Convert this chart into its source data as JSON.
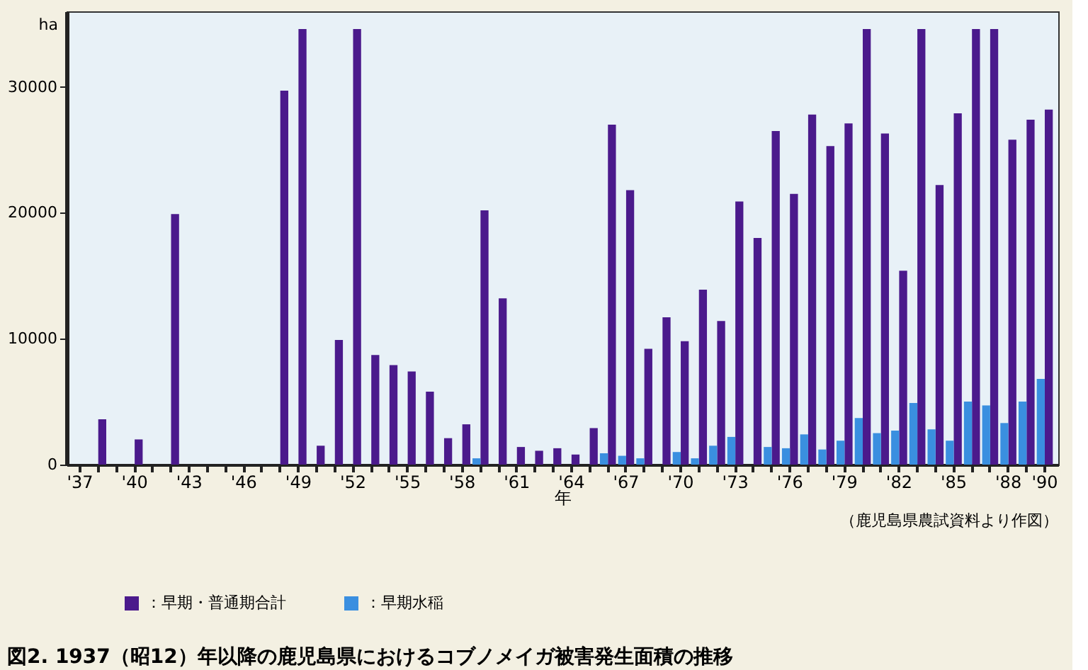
{
  "chart_data": {
    "type": "bar",
    "title": "図2. 1937（昭12）年以降の鹿児島県におけるコブノメイガ被害発生面積の推移",
    "xlabel": "年",
    "ylabel": "ha",
    "annotations": [
      "（鹿児島県農試資料より作図）"
    ],
    "categories": [
      "'37",
      null,
      null,
      "'40",
      null,
      null,
      "'43",
      null,
      null,
      "'46",
      null,
      null,
      "'49",
      null,
      null,
      "'52",
      null,
      null,
      "'55",
      null,
      null,
      "'58",
      null,
      null,
      "'61",
      null,
      null,
      "'64",
      null,
      null,
      "'67",
      null,
      null,
      "'70",
      null,
      null,
      "'73",
      null,
      null,
      "'76",
      null,
      null,
      "'79",
      null,
      null,
      "'82",
      null,
      null,
      "'85",
      null,
      null,
      "'88",
      null,
      "'90"
    ],
    "series": [
      {
        "name": "：早期・普通期合計",
        "color": "#4b1a8c",
        "values": [
          null,
          3600,
          null,
          2000,
          null,
          19900,
          null,
          null,
          null,
          null,
          null,
          29700,
          34600,
          1500,
          9900,
          34600,
          8700,
          7900,
          7400,
          5800,
          2100,
          3200,
          20200,
          13200,
          1400,
          1100,
          1300,
          800,
          2900,
          27000,
          21800,
          9200,
          11700,
          9800,
          13900,
          11400,
          20900,
          18000,
          26500,
          21500,
          27800,
          25300,
          27100,
          34600,
          26300,
          15400,
          34600,
          22200,
          27900,
          34600,
          34600,
          25800,
          27400,
          28200
        ]
      },
      {
        "name": "：早期水稲",
        "color": "#3a8fe0",
        "values": [
          null,
          null,
          null,
          null,
          null,
          null,
          null,
          null,
          null,
          null,
          null,
          null,
          null,
          null,
          null,
          null,
          null,
          null,
          null,
          null,
          null,
          null,
          500,
          null,
          null,
          null,
          null,
          null,
          null,
          900,
          700,
          500,
          null,
          1000,
          500,
          1500,
          2200,
          null,
          1400,
          1300,
          2400,
          1200,
          1900,
          3700,
          2500,
          2700,
          4900,
          2800,
          1900,
          5000,
          4700,
          3300,
          5000,
          6800
        ]
      }
    ],
    "ylim": [
      0,
      36000
    ],
    "yticks": [
      0,
      10000,
      20000,
      30000
    ],
    "grid": false,
    "legend": "bottom left"
  }
}
